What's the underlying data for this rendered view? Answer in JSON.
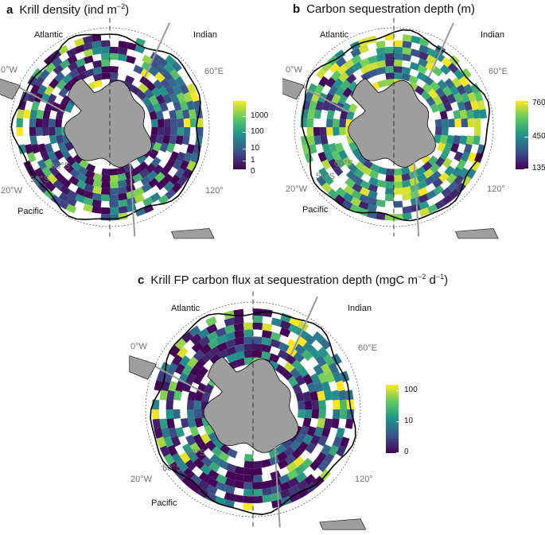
{
  "panels": [
    {
      "letter": "a",
      "title": "Krill density (ind m",
      "title_sup": "−2",
      "title_tail": ")",
      "labels": {
        "atlantic": "Atlantic",
        "indian": "Indian",
        "pacific": "Pacific",
        "lon_left": "0°W",
        "lon_right": "60°E",
        "lon_lowleft": "20°W",
        "lon_lowright": "120°",
        "lat60": "60°S",
        "lat50": "50°S"
      },
      "colorbar": {
        "ticks": [
          "1000",
          "100",
          "10",
          "1",
          "0"
        ]
      }
    },
    {
      "letter": "b",
      "title": "Carbon sequestration depth (m)",
      "title_sup": "",
      "title_tail": "",
      "labels": {
        "atlantic": "Atlantic",
        "indian": "Indian",
        "pacific": "Pacific",
        "lon_left": "0°W",
        "lon_right": "60°E",
        "lon_lowleft": "20°W",
        "lon_lowright": "120°",
        "lat60": "60°S",
        "lat50": "50°S"
      },
      "colorbar": {
        "ticks": [
          "760",
          "450",
          "135"
        ]
      }
    },
    {
      "letter": "c",
      "title": "Krill FP carbon flux at sequestration depth (mgC m",
      "title_sup": "−2",
      "title_mid": " d",
      "title_sup2": "−1",
      "title_tail": ")",
      "labels": {
        "atlantic": "Atlantic",
        "indian": "Indian",
        "pacific": "Pacific",
        "lon_left": "0°W",
        "lon_right": "60°E",
        "lon_lowleft": "20°W",
        "lon_lowright": "120°",
        "lat60": "60°S",
        "lat50": "50°S"
      },
      "colorbar": {
        "ticks": [
          "100",
          "10",
          "0"
        ]
      }
    }
  ],
  "colors": {
    "land": "#9e9e9e",
    "viridis": [
      "#440154",
      "#3b528b",
      "#21918c",
      "#5ec962",
      "#fde725"
    ]
  }
}
